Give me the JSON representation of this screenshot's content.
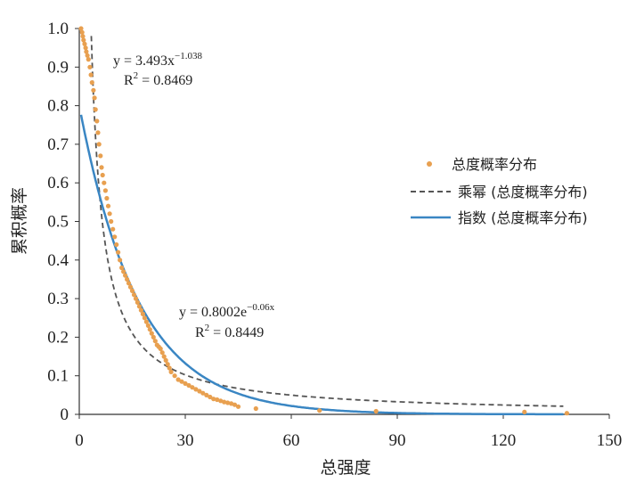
{
  "chart_data": {
    "type": "scatter",
    "xlabel": "总强度",
    "ylabel": "累积概率",
    "xlim": [
      0,
      150
    ],
    "ylim": [
      0,
      1.0
    ],
    "xticks": [
      0,
      30,
      60,
      90,
      120,
      150
    ],
    "xtick_labels": [
      "0",
      "30",
      "60",
      "90",
      "120",
      "150"
    ],
    "yticks": [
      0,
      0.1,
      0.2,
      0.3,
      0.4,
      0.5,
      0.6,
      0.7,
      0.8,
      0.9,
      1.0
    ],
    "ytick_labels": [
      "0",
      "0.1",
      "0.2",
      "0.3",
      "0.4",
      "0.5",
      "0.6",
      "0.7",
      "0.8",
      "0.9",
      "1.0"
    ],
    "grid": false,
    "legend_position": "right",
    "colors": {
      "points": "#E8A050",
      "power": "#555555",
      "exp": "#3A86C3",
      "axis": "#333333"
    },
    "series": [
      {
        "name": "总度概率分布",
        "kind": "scatter",
        "x": [
          0.5,
          0.8,
          1,
          1.2,
          1.5,
          1.8,
          2,
          2.3,
          2.6,
          3,
          3.3,
          3.6,
          4,
          4.3,
          4.6,
          5,
          5.3,
          5.6,
          6,
          6.3,
          6.6,
          7,
          7.4,
          7.8,
          8.2,
          8.6,
          9,
          9.5,
          10,
          10.5,
          11,
          11.5,
          12,
          12.5,
          13,
          13.5,
          14,
          14.5,
          15,
          15.5,
          16,
          16.5,
          17,
          17.5,
          18,
          18.5,
          19,
          19.5,
          20,
          20.5,
          21,
          21.5,
          22,
          22.5,
          23,
          23.5,
          24,
          24.5,
          25,
          25.5,
          26,
          27,
          28,
          29,
          30,
          31,
          32,
          33,
          34,
          35,
          36,
          37,
          38,
          39,
          40,
          41,
          42,
          43,
          44,
          45,
          50,
          68,
          84,
          126,
          138
        ],
        "y": [
          1.0,
          0.99,
          0.98,
          0.97,
          0.96,
          0.95,
          0.94,
          0.93,
          0.92,
          0.9,
          0.88,
          0.86,
          0.84,
          0.82,
          0.79,
          0.76,
          0.73,
          0.7,
          0.67,
          0.64,
          0.62,
          0.6,
          0.58,
          0.56,
          0.54,
          0.52,
          0.5,
          0.48,
          0.46,
          0.44,
          0.42,
          0.4,
          0.38,
          0.37,
          0.36,
          0.35,
          0.34,
          0.33,
          0.32,
          0.31,
          0.3,
          0.29,
          0.28,
          0.27,
          0.26,
          0.25,
          0.24,
          0.23,
          0.22,
          0.21,
          0.2,
          0.19,
          0.18,
          0.175,
          0.17,
          0.16,
          0.15,
          0.14,
          0.13,
          0.12,
          0.11,
          0.1,
          0.09,
          0.085,
          0.08,
          0.075,
          0.07,
          0.065,
          0.06,
          0.055,
          0.05,
          0.045,
          0.04,
          0.038,
          0.035,
          0.032,
          0.03,
          0.028,
          0.025,
          0.02,
          0.015,
          0.01,
          0.008,
          0.006,
          0.003
        ]
      },
      {
        "name": "乘幂 (总度概率分布)",
        "kind": "line",
        "dash": true,
        "formula": {
          "a": 3.493,
          "b": -1.038,
          "form": "power"
        },
        "x_range": [
          3.4,
          137
        ]
      },
      {
        "name": "指数 (总度概率分布)",
        "kind": "line",
        "dash": false,
        "formula": {
          "a": 0.8002,
          "b": -0.06,
          "form": "exp"
        },
        "x_range": [
          0.5,
          137
        ]
      }
    ],
    "annotations": [
      {
        "lines": [
          "y = 3.493x",
          "R",
          " = 0.8469"
        ],
        "sup": [
          "−1.038",
          "2"
        ]
      },
      {
        "lines": [
          "y = 0.8002e",
          "R",
          " = 0.8449"
        ],
        "sup": [
          "−0.06x",
          "2"
        ]
      }
    ]
  }
}
